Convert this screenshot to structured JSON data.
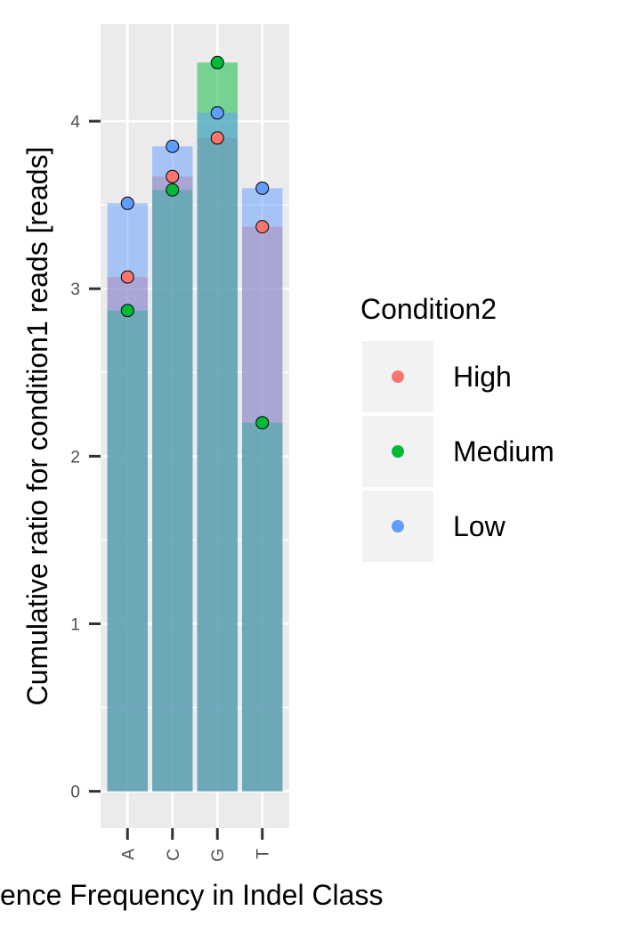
{
  "chart_data": {
    "type": "bar",
    "title": "",
    "xlabel": "ence Frequency in Indel Class",
    "ylabel": "Cumulative ratio for condition1 reads [reads]",
    "categories": [
      "A",
      "C",
      "G",
      "T"
    ],
    "yticks": [
      "0",
      "1",
      "2",
      "3",
      "4"
    ],
    "ylim": [
      -0.22,
      4.58
    ],
    "grid": true,
    "legend": {
      "title": "Condition2",
      "placement": "right",
      "entries": [
        "High",
        "Medium",
        "Low"
      ]
    },
    "series": [
      {
        "name": "High",
        "color": "#F8766D",
        "values": [
          3.07,
          3.67,
          3.9,
          3.37
        ]
      },
      {
        "name": "Medium",
        "color": "#00BA38",
        "values": [
          2.87,
          3.59,
          4.35,
          2.2
        ]
      },
      {
        "name": "Low",
        "color": "#619CFF",
        "values": [
          3.51,
          3.85,
          4.05,
          3.6
        ]
      }
    ]
  }
}
